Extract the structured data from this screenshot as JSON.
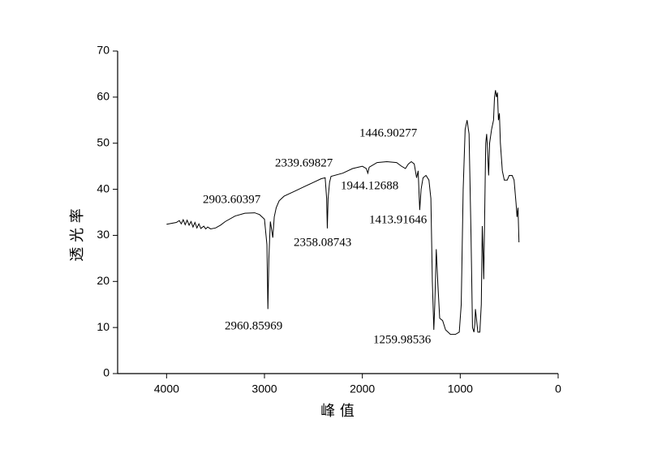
{
  "chart_data": {
    "type": "line",
    "xlabel": "峰 值",
    "ylabel": "透 光 率",
    "xlim": [
      4500,
      0
    ],
    "xticks": [
      4000,
      3000,
      2000,
      1000,
      0
    ],
    "ylim": [
      0,
      70
    ],
    "yticks": [
      0,
      10,
      20,
      30,
      40,
      50,
      60,
      70
    ],
    "color": "#000000",
    "x": [
      4000,
      3950,
      3900,
      3870,
      3850,
      3830,
      3810,
      3790,
      3770,
      3750,
      3730,
      3710,
      3690,
      3670,
      3650,
      3620,
      3600,
      3580,
      3550,
      3500,
      3450,
      3400,
      3300,
      3200,
      3100,
      3050,
      3000,
      2975,
      2965,
      2955,
      2940,
      2925,
      2915,
      2900,
      2880,
      2850,
      2800,
      2700,
      2600,
      2500,
      2420,
      2380,
      2365,
      2358,
      2350,
      2335,
      2320,
      2200,
      2100,
      2000,
      1960,
      1944,
      1930,
      1850,
      1750,
      1650,
      1600,
      1560,
      1530,
      1500,
      1470,
      1446,
      1430,
      1414,
      1400,
      1380,
      1350,
      1320,
      1300,
      1285,
      1270,
      1260,
      1245,
      1230,
      1210,
      1180,
      1150,
      1100,
      1050,
      1010,
      990,
      970,
      950,
      930,
      910,
      890,
      875,
      860,
      850,
      845,
      835,
      820,
      800,
      785,
      775,
      765,
      760,
      750,
      740,
      730,
      720,
      710,
      700,
      680,
      660,
      650,
      640,
      630,
      620,
      610,
      600,
      590,
      570,
      550,
      520,
      500,
      470,
      450,
      430,
      420,
      410,
      400
    ],
    "values": [
      32.4,
      32.6,
      32.8,
      33.2,
      32.5,
      33.4,
      32.3,
      33.3,
      32.2,
      33.0,
      31.8,
      32.8,
      31.6,
      32.5,
      31.5,
      32.0,
      31.4,
      31.8,
      31.4,
      31.6,
      32.2,
      33.0,
      34.2,
      34.8,
      34.9,
      34.5,
      33.5,
      28,
      14,
      25,
      33,
      31,
      29.5,
      34,
      36,
      37.5,
      38.5,
      39.5,
      40.5,
      41.5,
      42.3,
      42.5,
      38,
      31.5,
      38,
      41.5,
      42.8,
      43.5,
      44.5,
      45,
      44.5,
      43.5,
      44.8,
      45.8,
      46,
      45.8,
      45,
      44.5,
      45.5,
      46,
      45.5,
      42.5,
      44,
      35.5,
      40,
      42.5,
      43,
      42,
      38,
      20,
      9.5,
      15,
      27,
      20,
      12,
      11.5,
      9.5,
      8.5,
      8.5,
      9,
      15,
      40,
      53,
      55,
      52,
      30,
      10,
      9,
      11,
      14,
      12,
      9,
      9,
      15,
      32,
      25,
      20.5,
      35,
      50,
      52,
      48,
      43,
      50,
      53,
      55,
      60,
      61.5,
      60,
      61,
      55,
      56.5,
      50,
      44,
      42,
      42,
      43,
      43,
      42,
      37,
      34,
      36,
      28.5
    ],
    "annotations": [
      "2903.60397",
      "2339.69827",
      "1446.90277",
      "1944.12688",
      "1413.91646",
      "2358.08743",
      "2960.85969",
      "1259.98536"
    ]
  }
}
